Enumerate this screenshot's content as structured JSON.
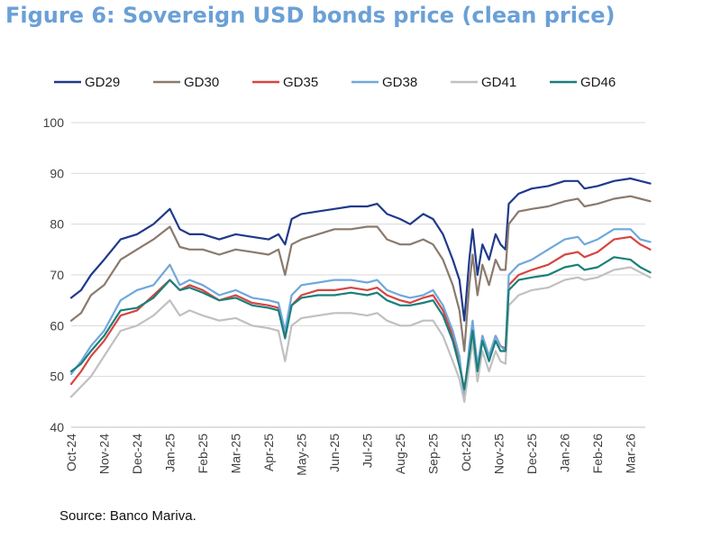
{
  "figure": {
    "title": "Figure 6: Sovereign USD bonds price (clean price)",
    "source": "Source: Banco Mariva."
  },
  "chart_data": {
    "type": "line",
    "title": "Figure 6: Sovereign USD bonds price (clean price)",
    "xlabel": "",
    "ylabel": "",
    "ylim": [
      40,
      100
    ],
    "yticks": [
      "40",
      "50",
      "60",
      "70",
      "80",
      "90",
      "100"
    ],
    "grid": true,
    "legend_position": "top",
    "x": [
      "Oct-24",
      "Nov-24",
      "Dec-24",
      "Jan-25",
      "Feb-25",
      "Mar-25",
      "Apr-25",
      "May-25",
      "Jun-25",
      "Jul-25",
      "Aug-25",
      "Sep-25",
      "Oct-25",
      "Nov-25",
      "Dec-25",
      "Jan-26",
      "Feb-26",
      "Mar-26"
    ],
    "series": [
      {
        "name": "GD29",
        "color": "#1f3a8a",
        "values": [
          [
            0,
            65.5
          ],
          [
            0.3,
            67
          ],
          [
            0.6,
            70
          ],
          [
            1,
            73
          ],
          [
            1.5,
            77
          ],
          [
            2,
            78
          ],
          [
            2.5,
            80
          ],
          [
            3,
            83
          ],
          [
            3.3,
            79
          ],
          [
            3.6,
            78
          ],
          [
            4,
            78
          ],
          [
            4.5,
            77
          ],
          [
            5,
            78
          ],
          [
            5.5,
            77.5
          ],
          [
            6,
            77
          ],
          [
            6.3,
            78
          ],
          [
            6.5,
            76
          ],
          [
            6.7,
            81
          ],
          [
            7,
            82
          ],
          [
            7.5,
            82.5
          ],
          [
            8,
            83
          ],
          [
            8.5,
            83.5
          ],
          [
            9,
            83.5
          ],
          [
            9.3,
            84
          ],
          [
            9.6,
            82
          ],
          [
            10,
            81
          ],
          [
            10.3,
            80
          ],
          [
            10.7,
            82
          ],
          [
            11,
            81
          ],
          [
            11.3,
            78
          ],
          [
            11.6,
            73
          ],
          [
            11.8,
            69
          ],
          [
            11.95,
            61
          ],
          [
            12.1,
            73
          ],
          [
            12.2,
            79
          ],
          [
            12.35,
            70
          ],
          [
            12.5,
            76
          ],
          [
            12.7,
            73
          ],
          [
            12.9,
            78
          ],
          [
            13.05,
            76
          ],
          [
            13.2,
            75
          ],
          [
            13.3,
            84
          ],
          [
            13.6,
            86
          ],
          [
            14,
            87
          ],
          [
            14.5,
            87.5
          ],
          [
            15,
            88.5
          ],
          [
            15.4,
            88.5
          ],
          [
            15.6,
            87
          ],
          [
            16,
            87.5
          ],
          [
            16.5,
            88.5
          ],
          [
            17,
            89
          ],
          [
            17.3,
            88.5
          ],
          [
            17.6,
            88
          ]
        ]
      },
      {
        "name": "GD30",
        "color": "#8a7a6e",
        "values": [
          [
            0,
            61
          ],
          [
            0.3,
            62.5
          ],
          [
            0.6,
            66
          ],
          [
            1,
            68
          ],
          [
            1.5,
            73
          ],
          [
            2,
            75
          ],
          [
            2.5,
            77
          ],
          [
            3,
            79.5
          ],
          [
            3.3,
            75.5
          ],
          [
            3.6,
            75
          ],
          [
            4,
            75
          ],
          [
            4.5,
            74
          ],
          [
            5,
            75
          ],
          [
            5.5,
            74.5
          ],
          [
            6,
            74
          ],
          [
            6.3,
            75
          ],
          [
            6.5,
            70
          ],
          [
            6.7,
            76
          ],
          [
            7,
            77
          ],
          [
            7.5,
            78
          ],
          [
            8,
            79
          ],
          [
            8.5,
            79
          ],
          [
            9,
            79.5
          ],
          [
            9.3,
            79.5
          ],
          [
            9.6,
            77
          ],
          [
            10,
            76
          ],
          [
            10.3,
            76
          ],
          [
            10.7,
            77
          ],
          [
            11,
            76
          ],
          [
            11.3,
            73
          ],
          [
            11.6,
            68
          ],
          [
            11.8,
            63
          ],
          [
            11.95,
            55
          ],
          [
            12.1,
            68
          ],
          [
            12.2,
            74
          ],
          [
            12.35,
            66
          ],
          [
            12.5,
            72
          ],
          [
            12.7,
            68
          ],
          [
            12.9,
            73
          ],
          [
            13.05,
            71
          ],
          [
            13.2,
            71
          ],
          [
            13.3,
            80
          ],
          [
            13.6,
            82.5
          ],
          [
            14,
            83
          ],
          [
            14.5,
            83.5
          ],
          [
            15,
            84.5
          ],
          [
            15.4,
            85
          ],
          [
            15.6,
            83.5
          ],
          [
            16,
            84
          ],
          [
            16.5,
            85
          ],
          [
            17,
            85.5
          ],
          [
            17.3,
            85
          ],
          [
            17.6,
            84.5
          ]
        ]
      },
      {
        "name": "GD35",
        "color": "#d64541",
        "values": [
          [
            0,
            48.5
          ],
          [
            0.3,
            51
          ],
          [
            0.6,
            54
          ],
          [
            1,
            57
          ],
          [
            1.5,
            62
          ],
          [
            2,
            63
          ],
          [
            2.5,
            66
          ],
          [
            3,
            69
          ],
          [
            3.3,
            67
          ],
          [
            3.6,
            68
          ],
          [
            4,
            67
          ],
          [
            4.5,
            65
          ],
          [
            5,
            66
          ],
          [
            5.5,
            64.5
          ],
          [
            6,
            64
          ],
          [
            6.3,
            63.5
          ],
          [
            6.5,
            58.5
          ],
          [
            6.7,
            64
          ],
          [
            7,
            66
          ],
          [
            7.5,
            67
          ],
          [
            8,
            67
          ],
          [
            8.5,
            67.5
          ],
          [
            9,
            67
          ],
          [
            9.3,
            67.5
          ],
          [
            9.6,
            66
          ],
          [
            10,
            65
          ],
          [
            10.3,
            64.5
          ],
          [
            10.7,
            65.5
          ],
          [
            11,
            66
          ],
          [
            11.3,
            63
          ],
          [
            11.6,
            58
          ],
          [
            11.8,
            53
          ],
          [
            11.95,
            47
          ],
          [
            12.1,
            55
          ],
          [
            12.2,
            60
          ],
          [
            12.35,
            52
          ],
          [
            12.5,
            58
          ],
          [
            12.7,
            54
          ],
          [
            12.9,
            58
          ],
          [
            13.05,
            56
          ],
          [
            13.2,
            55.5
          ],
          [
            13.3,
            68
          ],
          [
            13.6,
            70
          ],
          [
            14,
            71
          ],
          [
            14.5,
            72
          ],
          [
            15,
            74
          ],
          [
            15.4,
            74.5
          ],
          [
            15.6,
            73.5
          ],
          [
            16,
            74.5
          ],
          [
            16.5,
            77
          ],
          [
            17,
            77.5
          ],
          [
            17.3,
            76
          ],
          [
            17.6,
            75
          ]
        ]
      },
      {
        "name": "GD38",
        "color": "#6fa8dc",
        "values": [
          [
            0,
            50.5
          ],
          [
            0.3,
            53
          ],
          [
            0.6,
            56
          ],
          [
            1,
            59
          ],
          [
            1.5,
            65
          ],
          [
            2,
            67
          ],
          [
            2.5,
            68
          ],
          [
            3,
            72
          ],
          [
            3.3,
            68
          ],
          [
            3.6,
            69
          ],
          [
            4,
            68
          ],
          [
            4.5,
            66
          ],
          [
            5,
            67
          ],
          [
            5.5,
            65.5
          ],
          [
            6,
            65
          ],
          [
            6.3,
            64.5
          ],
          [
            6.5,
            59
          ],
          [
            6.7,
            66
          ],
          [
            7,
            68
          ],
          [
            7.5,
            68.5
          ],
          [
            8,
            69
          ],
          [
            8.5,
            69
          ],
          [
            9,
            68.5
          ],
          [
            9.3,
            69
          ],
          [
            9.6,
            67
          ],
          [
            10,
            66
          ],
          [
            10.3,
            65.5
          ],
          [
            10.7,
            66
          ],
          [
            11,
            67
          ],
          [
            11.3,
            64
          ],
          [
            11.6,
            59
          ],
          [
            11.8,
            54
          ],
          [
            11.95,
            45.5
          ],
          [
            12.1,
            56
          ],
          [
            12.2,
            61
          ],
          [
            12.35,
            52
          ],
          [
            12.5,
            58
          ],
          [
            12.7,
            54
          ],
          [
            12.9,
            58
          ],
          [
            13.05,
            56
          ],
          [
            13.2,
            55
          ],
          [
            13.3,
            70
          ],
          [
            13.6,
            72
          ],
          [
            14,
            73
          ],
          [
            14.5,
            75
          ],
          [
            15,
            77
          ],
          [
            15.4,
            77.5
          ],
          [
            15.6,
            76
          ],
          [
            16,
            77
          ],
          [
            16.5,
            79
          ],
          [
            17,
            79
          ],
          [
            17.3,
            77
          ],
          [
            17.6,
            76.5
          ]
        ]
      },
      {
        "name": "GD41",
        "color": "#c0c0c0",
        "values": [
          [
            0,
            46
          ],
          [
            0.3,
            48
          ],
          [
            0.6,
            50
          ],
          [
            1,
            54
          ],
          [
            1.5,
            59
          ],
          [
            2,
            60
          ],
          [
            2.5,
            62
          ],
          [
            3,
            65
          ],
          [
            3.3,
            62
          ],
          [
            3.6,
            63
          ],
          [
            4,
            62
          ],
          [
            4.5,
            61
          ],
          [
            5,
            61.5
          ],
          [
            5.5,
            60
          ],
          [
            6,
            59.5
          ],
          [
            6.3,
            59
          ],
          [
            6.5,
            53
          ],
          [
            6.7,
            60
          ],
          [
            7,
            61.5
          ],
          [
            7.5,
            62
          ],
          [
            8,
            62.5
          ],
          [
            8.5,
            62.5
          ],
          [
            9,
            62
          ],
          [
            9.3,
            62.5
          ],
          [
            9.6,
            61
          ],
          [
            10,
            60
          ],
          [
            10.3,
            60
          ],
          [
            10.7,
            61
          ],
          [
            11,
            61
          ],
          [
            11.3,
            58
          ],
          [
            11.6,
            53
          ],
          [
            11.8,
            49.5
          ],
          [
            11.95,
            45
          ],
          [
            12.1,
            52
          ],
          [
            12.2,
            57
          ],
          [
            12.35,
            49
          ],
          [
            12.5,
            55
          ],
          [
            12.7,
            51
          ],
          [
            12.9,
            55
          ],
          [
            13.05,
            53
          ],
          [
            13.2,
            52.5
          ],
          [
            13.3,
            64
          ],
          [
            13.6,
            66
          ],
          [
            14,
            67
          ],
          [
            14.5,
            67.5
          ],
          [
            15,
            69
          ],
          [
            15.4,
            69.5
          ],
          [
            15.6,
            69
          ],
          [
            16,
            69.5
          ],
          [
            16.5,
            71
          ],
          [
            17,
            71.5
          ],
          [
            17.3,
            70.5
          ],
          [
            17.6,
            69.5
          ]
        ]
      },
      {
        "name": "GD46",
        "color": "#1a7f7a",
        "values": [
          [
            0,
            51
          ],
          [
            0.3,
            52.5
          ],
          [
            0.6,
            55
          ],
          [
            1,
            58
          ],
          [
            1.5,
            63
          ],
          [
            2,
            63.5
          ],
          [
            2.5,
            65.5
          ],
          [
            3,
            69
          ],
          [
            3.3,
            67
          ],
          [
            3.6,
            67.5
          ],
          [
            4,
            66.5
          ],
          [
            4.5,
            65
          ],
          [
            5,
            65.5
          ],
          [
            5.5,
            64
          ],
          [
            6,
            63.5
          ],
          [
            6.3,
            63
          ],
          [
            6.5,
            57.5
          ],
          [
            6.7,
            64
          ],
          [
            7,
            65.5
          ],
          [
            7.5,
            66
          ],
          [
            8,
            66
          ],
          [
            8.5,
            66.5
          ],
          [
            9,
            66
          ],
          [
            9.3,
            66.5
          ],
          [
            9.6,
            65
          ],
          [
            10,
            64
          ],
          [
            10.3,
            64
          ],
          [
            10.7,
            64.5
          ],
          [
            11,
            65
          ],
          [
            11.3,
            62
          ],
          [
            11.6,
            57
          ],
          [
            11.8,
            52
          ],
          [
            11.95,
            47.5
          ],
          [
            12.1,
            54
          ],
          [
            12.2,
            59
          ],
          [
            12.35,
            51
          ],
          [
            12.5,
            57
          ],
          [
            12.7,
            53
          ],
          [
            12.9,
            57
          ],
          [
            13.05,
            55
          ],
          [
            13.2,
            55
          ],
          [
            13.3,
            67
          ],
          [
            13.6,
            69
          ],
          [
            14,
            69.5
          ],
          [
            14.5,
            70
          ],
          [
            15,
            71.5
          ],
          [
            15.4,
            72
          ],
          [
            15.6,
            71
          ],
          [
            16,
            71.5
          ],
          [
            16.5,
            73.5
          ],
          [
            17,
            73
          ],
          [
            17.3,
            71.5
          ],
          [
            17.6,
            70.5
          ]
        ]
      }
    ]
  }
}
